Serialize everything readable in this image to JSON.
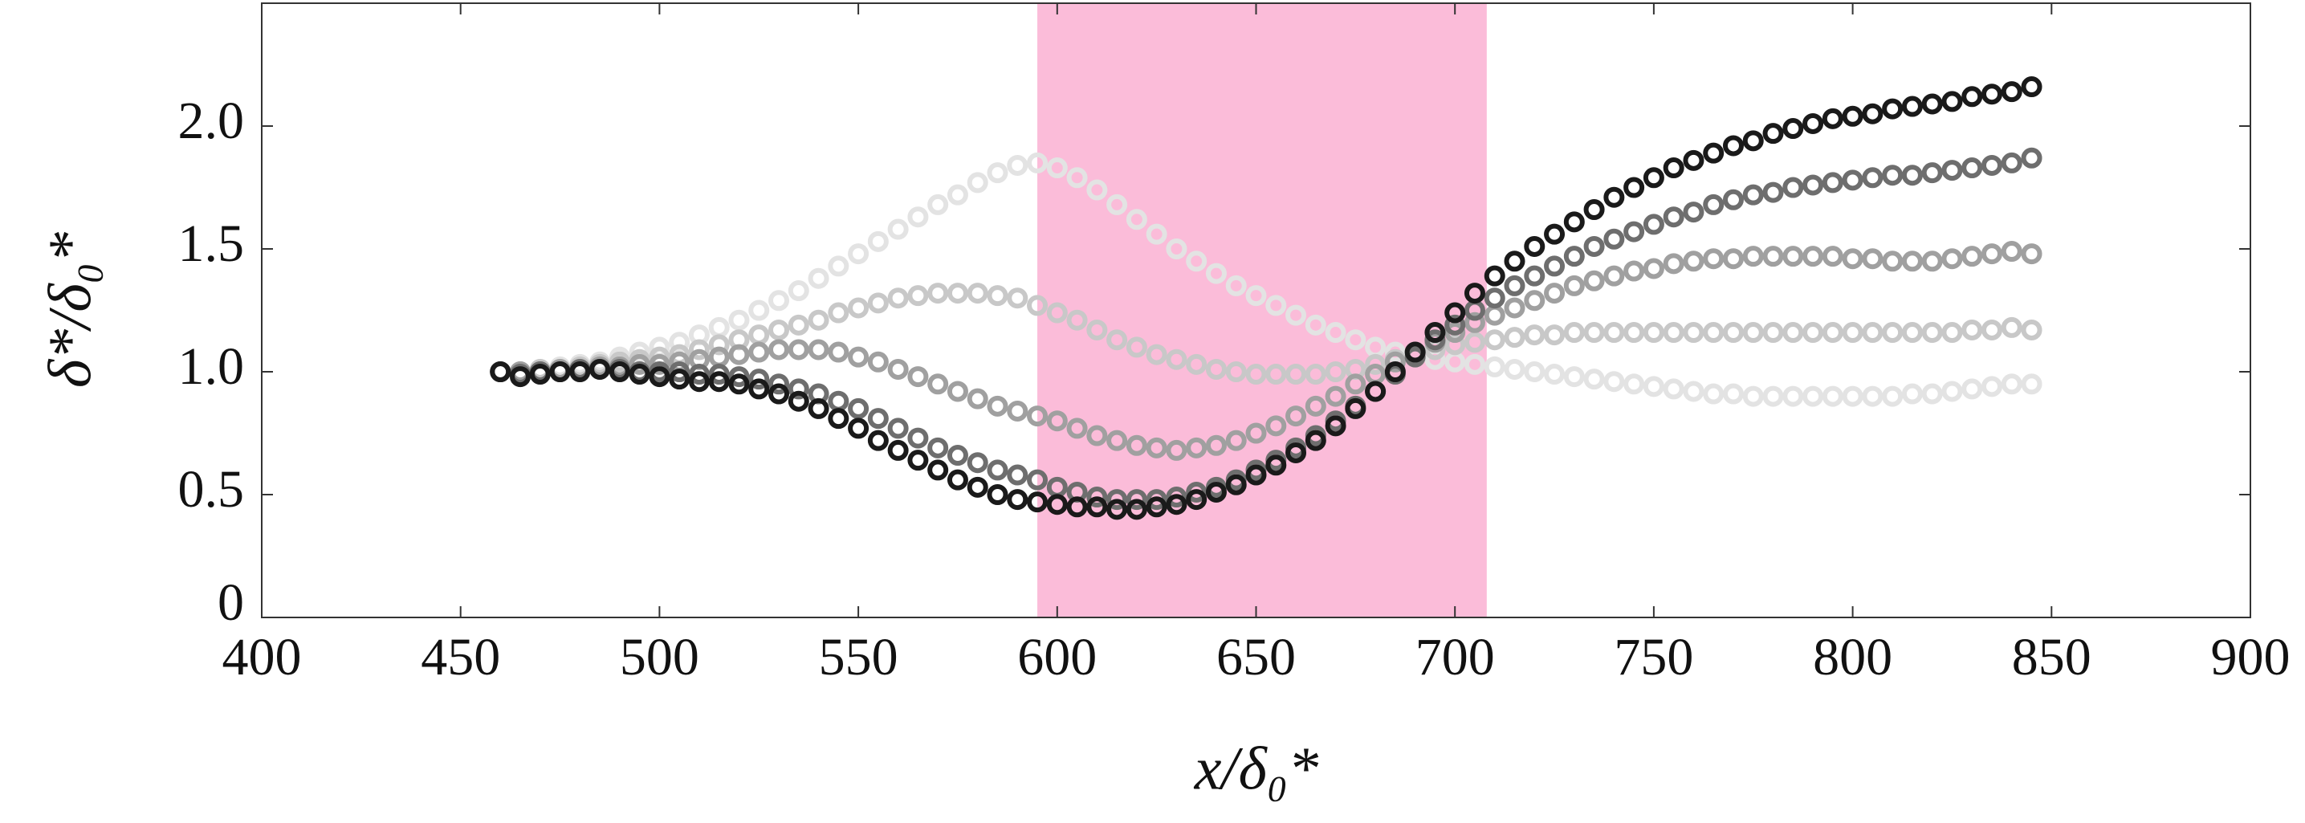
{
  "chart_data": {
    "type": "scatter",
    "xlabel": "x/δ₀*",
    "ylabel": "δ*/δ₀*",
    "xlim": [
      400,
      900
    ],
    "ylim": [
      0,
      2.5
    ],
    "xticks": [
      400,
      450,
      500,
      550,
      600,
      650,
      700,
      750,
      800,
      850,
      900
    ],
    "yticks": [
      0,
      0.5,
      {
        "value": 1,
        "label": "1.0"
      },
      1.5,
      {
        "value": 2,
        "label": "2.0"
      }
    ],
    "grid": false,
    "shaded_region": {
      "x": [
        595,
        708
      ],
      "color": "#fbbcd9"
    },
    "x": [
      460,
      465,
      470,
      475,
      480,
      485,
      490,
      495,
      500,
      505,
      510,
      515,
      520,
      525,
      530,
      535,
      540,
      545,
      550,
      555,
      560,
      565,
      570,
      575,
      580,
      585,
      590,
      595,
      600,
      605,
      610,
      615,
      620,
      625,
      630,
      635,
      640,
      645,
      650,
      655,
      660,
      665,
      670,
      675,
      680,
      685,
      690,
      695,
      700,
      705,
      710,
      715,
      720,
      725,
      730,
      735,
      740,
      745,
      750,
      755,
      760,
      765,
      770,
      775,
      780,
      785,
      790,
      795,
      800,
      805,
      810,
      815,
      820,
      825,
      830,
      835,
      840,
      845
    ],
    "series": [
      {
        "color": "#e3e3e3",
        "values": [
          1.0,
          1.0,
          1.01,
          1.02,
          1.03,
          1.04,
          1.06,
          1.08,
          1.1,
          1.12,
          1.15,
          1.18,
          1.21,
          1.25,
          1.29,
          1.33,
          1.38,
          1.43,
          1.48,
          1.53,
          1.58,
          1.63,
          1.68,
          1.72,
          1.77,
          1.81,
          1.84,
          1.85,
          1.83,
          1.79,
          1.74,
          1.68,
          1.62,
          1.56,
          1.5,
          1.45,
          1.4,
          1.35,
          1.31,
          1.27,
          1.23,
          1.19,
          1.16,
          1.13,
          1.1,
          1.08,
          1.06,
          1.05,
          1.04,
          1.03,
          1.02,
          1.01,
          1.0,
          0.99,
          0.98,
          0.97,
          0.96,
          0.95,
          0.94,
          0.93,
          0.92,
          0.91,
          0.91,
          0.9,
          0.9,
          0.9,
          0.9,
          0.9,
          0.9,
          0.9,
          0.9,
          0.91,
          0.91,
          0.92,
          0.93,
          0.94,
          0.95,
          0.95
        ]
      },
      {
        "color": "#c8c8c8",
        "values": [
          1.0,
          1.0,
          1.01,
          1.01,
          1.02,
          1.03,
          1.04,
          1.05,
          1.06,
          1.07,
          1.09,
          1.11,
          1.13,
          1.15,
          1.17,
          1.19,
          1.21,
          1.24,
          1.26,
          1.28,
          1.3,
          1.31,
          1.32,
          1.32,
          1.32,
          1.31,
          1.3,
          1.27,
          1.24,
          1.21,
          1.17,
          1.13,
          1.1,
          1.07,
          1.05,
          1.03,
          1.01,
          1.0,
          0.99,
          0.99,
          0.99,
          0.99,
          1.0,
          1.01,
          1.03,
          1.05,
          1.07,
          1.09,
          1.11,
          1.12,
          1.13,
          1.14,
          1.15,
          1.15,
          1.16,
          1.16,
          1.16,
          1.16,
          1.16,
          1.16,
          1.16,
          1.16,
          1.16,
          1.16,
          1.16,
          1.16,
          1.16,
          1.16,
          1.16,
          1.16,
          1.16,
          1.16,
          1.16,
          1.16,
          1.17,
          1.17,
          1.18,
          1.17
        ]
      },
      {
        "color": "#a0a0a0",
        "values": [
          1.0,
          1.0,
          1.0,
          1.01,
          1.01,
          1.02,
          1.02,
          1.03,
          1.03,
          1.04,
          1.05,
          1.06,
          1.07,
          1.08,
          1.09,
          1.09,
          1.09,
          1.08,
          1.06,
          1.04,
          1.01,
          0.98,
          0.95,
          0.92,
          0.89,
          0.86,
          0.84,
          0.82,
          0.8,
          0.77,
          0.74,
          0.72,
          0.7,
          0.69,
          0.68,
          0.69,
          0.7,
          0.72,
          0.75,
          0.78,
          0.82,
          0.86,
          0.9,
          0.95,
          0.99,
          1.04,
          1.08,
          1.12,
          1.16,
          1.2,
          1.23,
          1.26,
          1.29,
          1.32,
          1.35,
          1.37,
          1.39,
          1.41,
          1.42,
          1.44,
          1.45,
          1.46,
          1.46,
          1.47,
          1.47,
          1.47,
          1.47,
          1.47,
          1.46,
          1.46,
          1.45,
          1.45,
          1.45,
          1.46,
          1.47,
          1.48,
          1.49,
          1.48
        ]
      },
      {
        "color": "#6e6e6e",
        "values": [
          1.0,
          0.99,
          1.0,
          1.0,
          1.01,
          1.01,
          1.01,
          1.0,
          1.0,
          1.0,
          0.99,
          0.99,
          0.98,
          0.97,
          0.95,
          0.93,
          0.91,
          0.88,
          0.85,
          0.81,
          0.77,
          0.73,
          0.69,
          0.66,
          0.63,
          0.6,
          0.58,
          0.56,
          0.53,
          0.51,
          0.49,
          0.48,
          0.48,
          0.48,
          0.49,
          0.51,
          0.53,
          0.56,
          0.6,
          0.64,
          0.69,
          0.74,
          0.8,
          0.86,
          0.92,
          0.99,
          1.06,
          1.13,
          1.19,
          1.25,
          1.3,
          1.35,
          1.39,
          1.43,
          1.47,
          1.51,
          1.54,
          1.57,
          1.6,
          1.63,
          1.65,
          1.68,
          1.7,
          1.72,
          1.73,
          1.75,
          1.76,
          1.77,
          1.78,
          1.79,
          1.8,
          1.8,
          1.81,
          1.82,
          1.83,
          1.84,
          1.85,
          1.87
        ]
      },
      {
        "color": "#1a1a1a",
        "values": [
          1.0,
          0.98,
          0.99,
          1.0,
          1.0,
          1.01,
          1.0,
          0.99,
          0.98,
          0.97,
          0.96,
          0.96,
          0.95,
          0.93,
          0.91,
          0.88,
          0.85,
          0.81,
          0.77,
          0.72,
          0.68,
          0.64,
          0.6,
          0.56,
          0.53,
          0.5,
          0.48,
          0.47,
          0.46,
          0.45,
          0.45,
          0.44,
          0.44,
          0.45,
          0.46,
          0.48,
          0.51,
          0.54,
          0.58,
          0.62,
          0.67,
          0.72,
          0.78,
          0.85,
          0.92,
          1.0,
          1.08,
          1.16,
          1.24,
          1.32,
          1.39,
          1.45,
          1.51,
          1.56,
          1.61,
          1.66,
          1.71,
          1.75,
          1.79,
          1.83,
          1.86,
          1.89,
          1.92,
          1.94,
          1.97,
          1.99,
          2.01,
          2.03,
          2.04,
          2.05,
          2.07,
          2.08,
          2.09,
          2.1,
          2.12,
          2.13,
          2.14,
          2.16
        ]
      }
    ]
  }
}
